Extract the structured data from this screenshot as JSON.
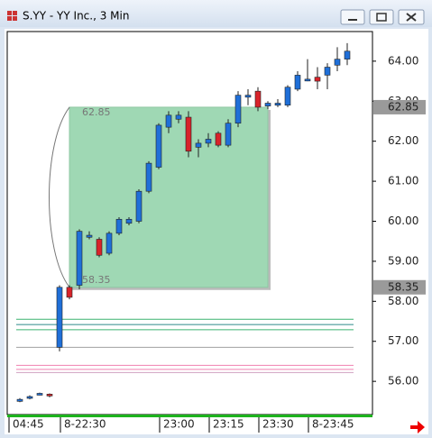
{
  "chart_data": {
    "type": "candlestick",
    "title": "S.YY - YY Inc., 3 Min",
    "categories": [
      "04:45",
      null,
      null,
      null,
      "8-22:30",
      null,
      null,
      null,
      null,
      null,
      null,
      null,
      null,
      null,
      "23:00",
      null,
      null,
      null,
      null,
      "23:15",
      null,
      null,
      null,
      null,
      "23:30",
      null,
      null,
      null,
      null,
      "8-23:45",
      null,
      null,
      null,
      null
    ],
    "open": [
      55.5,
      55.58,
      55.66,
      55.68,
      56.85,
      58.35,
      58.4,
      59.6,
      59.55,
      59.2,
      59.7,
      59.95,
      60.0,
      60.75,
      61.35,
      62.35,
      62.55,
      62.6,
      61.85,
      61.95,
      62.2,
      61.9,
      62.45,
      63.1,
      63.25,
      62.88,
      62.9,
      62.9,
      63.3,
      63.55,
      63.6,
      63.65,
      63.9,
      64.05
    ],
    "high": [
      55.58,
      55.65,
      55.72,
      55.7,
      58.4,
      58.4,
      59.8,
      59.75,
      59.6,
      59.75,
      60.1,
      60.1,
      60.8,
      61.5,
      62.45,
      62.75,
      62.75,
      62.75,
      62.05,
      62.2,
      62.25,
      62.55,
      63.25,
      63.3,
      63.35,
      63.0,
      63.05,
      63.4,
      63.75,
      64.05,
      63.85,
      63.95,
      64.35,
      64.45
    ],
    "low": [
      55.48,
      55.55,
      55.65,
      55.6,
      56.75,
      58.05,
      58.3,
      59.55,
      59.1,
      59.15,
      59.65,
      59.9,
      59.95,
      60.7,
      61.3,
      62.2,
      62.45,
      61.6,
      61.6,
      61.85,
      61.85,
      61.85,
      62.35,
      62.9,
      62.75,
      62.8,
      62.85,
      62.85,
      63.25,
      63.5,
      63.3,
      63.3,
      63.75,
      63.9
    ],
    "close": [
      55.55,
      55.62,
      55.7,
      55.64,
      58.35,
      58.1,
      59.75,
      59.65,
      59.15,
      59.7,
      60.05,
      60.05,
      60.75,
      61.45,
      62.4,
      62.65,
      62.65,
      61.75,
      61.95,
      62.05,
      61.9,
      62.45,
      63.15,
      63.15,
      62.85,
      62.95,
      62.95,
      63.35,
      63.65,
      63.55,
      63.5,
      63.85,
      64.05,
      64.25
    ],
    "up_color": "#1f6fd8",
    "down_color": "#d8232a",
    "ylim": [
      55.17,
      64.74
    ],
    "yticks": [
      {
        "value": 56,
        "label": "56.00"
      },
      {
        "value": 57,
        "label": "57.00"
      },
      {
        "value": 58,
        "label": "58.00"
      },
      {
        "value": 59,
        "label": "59.00"
      },
      {
        "value": 60,
        "label": "60.00"
      },
      {
        "value": 61,
        "label": "61.00"
      },
      {
        "value": 62,
        "label": "62.00"
      },
      {
        "value": 63,
        "label": "63.00"
      },
      {
        "value": 64,
        "label": "64.00"
      }
    ],
    "levels": [
      {
        "value": 57.55,
        "color": "#3cb371"
      },
      {
        "value": 57.42,
        "color": "#2e8b8b"
      },
      {
        "value": 57.29,
        "color": "#3cb371"
      },
      {
        "value": 56.85,
        "color": "#a0a0a0"
      },
      {
        "value": 56.4,
        "color": "#f080b0"
      },
      {
        "value": 56.3,
        "color": "#f080b0"
      },
      {
        "value": 56.22,
        "color": "#d0a0c0"
      }
    ],
    "box": {
      "top": 62.85,
      "bottom": 58.35,
      "color": "#9fd8b4"
    }
  }
}
